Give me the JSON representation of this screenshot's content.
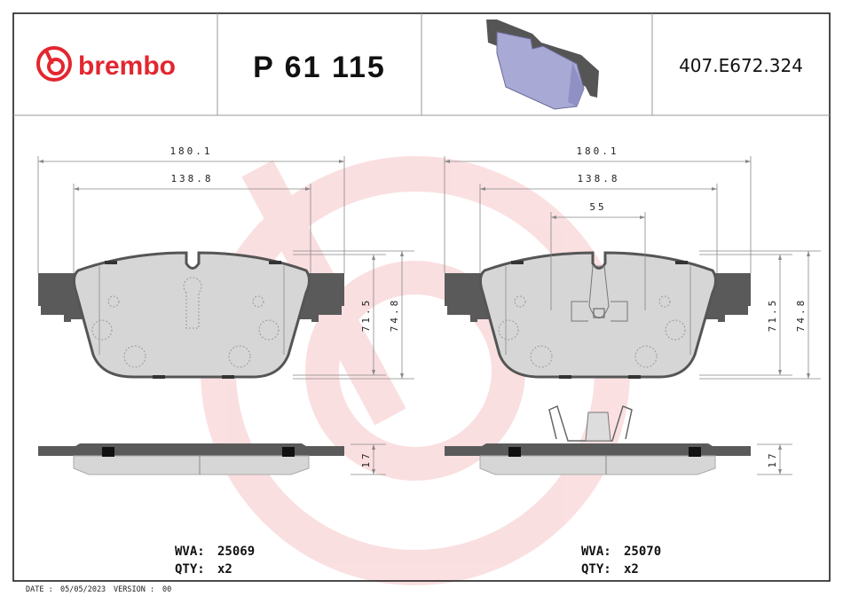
{
  "header": {
    "brand": "brembo",
    "part_number": "P 61 115",
    "reference_code": "407.E672.324",
    "brand_color": "#e3262f"
  },
  "views": [
    {
      "dims": {
        "overall_width": "180.1",
        "inner_width": "138.8",
        "height_inner": "71.5",
        "height_overall": "74.8",
        "thickness": "17"
      },
      "wva_label": "WVA:",
      "wva": "25069",
      "qty_label": "QTY:",
      "qty": "x2"
    },
    {
      "dims": {
        "overall_width": "180.1",
        "inner_width": "138.8",
        "sensor_width": "55",
        "height_inner": "71.5",
        "height_overall": "74.8",
        "thickness": "17"
      },
      "wva_label": "WVA:",
      "wva": "25070",
      "qty_label": "QTY:",
      "qty": "x2"
    }
  ],
  "footer": {
    "date_label": "DATE :",
    "date": "05/05/2023",
    "version_label": "VERSION :",
    "version": "00"
  },
  "colors": {
    "backing_plate": "#5a5a5a",
    "friction": "#d6d6d6",
    "watermark": "#e3262f",
    "iso_pad": "#a9a9d6"
  }
}
